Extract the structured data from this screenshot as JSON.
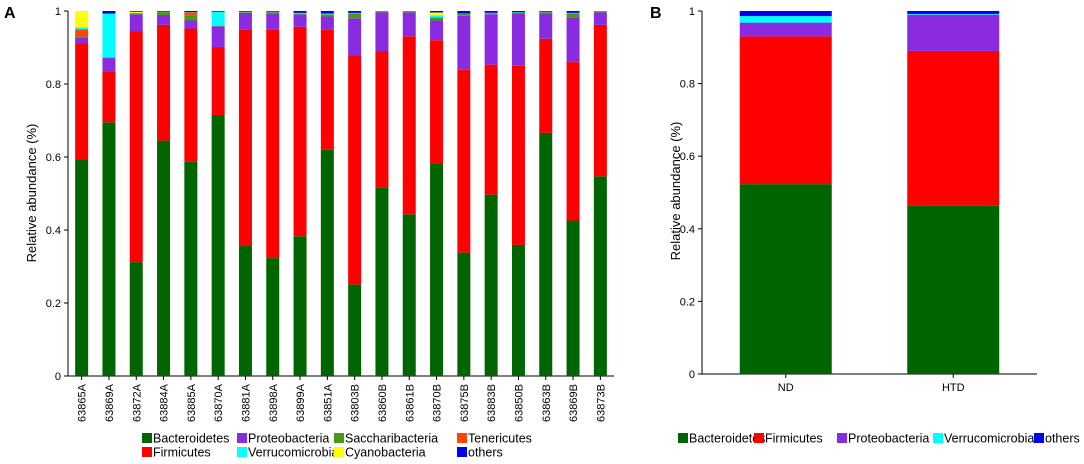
{
  "chart_data": [
    {
      "panel": "A",
      "type": "bar",
      "stacked": true,
      "ylabel": "Relative abundance (%)",
      "ylim": [
        0,
        1
      ],
      "yticks": [
        "0",
        "0.2",
        "0.4",
        "0.6",
        "0.8",
        "1"
      ],
      "categories": [
        "63865A",
        "63869A",
        "63872A",
        "63884A",
        "63885A",
        "63870A",
        "63881A",
        "63898A",
        "63899A",
        "63851A",
        "63803B",
        "63860B",
        "63861B",
        "63870B",
        "63875B",
        "63883B",
        "63850B",
        "63863B",
        "63869B",
        "63873B"
      ],
      "series": [
        {
          "name": "Bacteroidetes",
          "color": "#006400",
          "values": [
            0.593,
            0.695,
            0.312,
            0.645,
            0.587,
            0.715,
            0.356,
            0.323,
            0.383,
            0.62,
            0.251,
            0.517,
            0.443,
            0.582,
            0.338,
            0.497,
            0.359,
            0.666,
            0.426,
            0.547
          ]
        },
        {
          "name": "Firmicutes",
          "color": "#ff0000",
          "values": [
            0.318,
            0.138,
            0.633,
            0.317,
            0.365,
            0.185,
            0.594,
            0.627,
            0.574,
            0.33,
            0.627,
            0.372,
            0.488,
            0.338,
            0.501,
            0.356,
            0.491,
            0.258,
            0.434,
            0.415
          ]
        },
        {
          "name": "Proteobacteria",
          "color": "#8a2be2",
          "values": [
            0.017,
            0.038,
            0.046,
            0.027,
            0.022,
            0.058,
            0.045,
            0.044,
            0.033,
            0.035,
            0.102,
            0.107,
            0.065,
            0.054,
            0.148,
            0.138,
            0.143,
            0.07,
            0.122,
            0.034
          ]
        },
        {
          "name": "Saccharibacteria",
          "color": "#4a9a1a",
          "values": [
            0.002,
            0.002,
            0.003,
            0.008,
            0.014,
            0.001,
            0.002,
            0.003,
            0.003,
            0.006,
            0.014,
            0.002,
            0.002,
            0.008,
            0.005,
            0.003,
            0.003,
            0.003,
            0.012,
            0.002
          ]
        },
        {
          "name": "Tenericutes",
          "color": "#ff4500",
          "values": [
            0.02,
            0,
            0,
            0,
            0.008,
            0,
            0,
            0,
            0,
            0,
            0,
            0,
            0,
            0,
            0,
            0,
            0,
            0,
            0,
            0
          ]
        },
        {
          "name": "Verrucomicrobia",
          "color": "#00ffff",
          "values": [
            0.005,
            0.12,
            0.001,
            0.001,
            0.001,
            0.039,
            0.001,
            0.001,
            0.002,
            0.002,
            0.001,
            0.001,
            0.001,
            0.006,
            0.001,
            0.001,
            0.001,
            0.001,
            0.001,
            0.001
          ]
        },
        {
          "name": "Cyanobacteria",
          "color": "#ffff00",
          "values": [
            0.045,
            0,
            0.003,
            0,
            0,
            0,
            0,
            0,
            0,
            0,
            0,
            0,
            0,
            0.008,
            0,
            0,
            0,
            0,
            0,
            0
          ]
        },
        {
          "name": "others",
          "color": "#0000ee",
          "values": [
            0,
            0.007,
            0.002,
            0.002,
            0.003,
            0.002,
            0.002,
            0.002,
            0.005,
            0.007,
            0.005,
            0.001,
            0.001,
            0.004,
            0.007,
            0.005,
            0.003,
            0.002,
            0.005,
            0.001
          ]
        }
      ],
      "legend": [
        "Bacteroidetes",
        "Proteobacteria",
        "Saccharibacteria",
        "Tenericutes",
        "Firmicutes",
        "Verrucomicrobia",
        "Cyanobacteria",
        "others"
      ],
      "legend_position": "bottom"
    },
    {
      "panel": "B",
      "type": "bar",
      "stacked": true,
      "ylabel": "Relative abundance (%)",
      "ylim": [
        0,
        1
      ],
      "yticks": [
        "0",
        "0.2",
        "0.4",
        "0.6",
        "0.8",
        "1"
      ],
      "categories": [
        "ND",
        "HTD"
      ],
      "series": [
        {
          "name": "Bacteroidetes",
          "color": "#006400",
          "values": [
            0.523,
            0.463
          ]
        },
        {
          "name": "Firmicutes",
          "color": "#ff0000",
          "values": [
            0.407,
            0.427
          ]
        },
        {
          "name": "Proteobacteria",
          "color": "#8a2be2",
          "values": [
            0.038,
            0.1
          ]
        },
        {
          "name": "Verrucomicrobia",
          "color": "#00ffff",
          "values": [
            0.018,
            0.002
          ]
        },
        {
          "name": "others",
          "color": "#0000ee",
          "values": [
            0.014,
            0.008
          ]
        }
      ],
      "legend": [
        "Bacteroidetes",
        "Firmicutes",
        "Proteobacteria",
        "Verrucomicrobia",
        "others"
      ],
      "legend_position": "bottom"
    }
  ]
}
